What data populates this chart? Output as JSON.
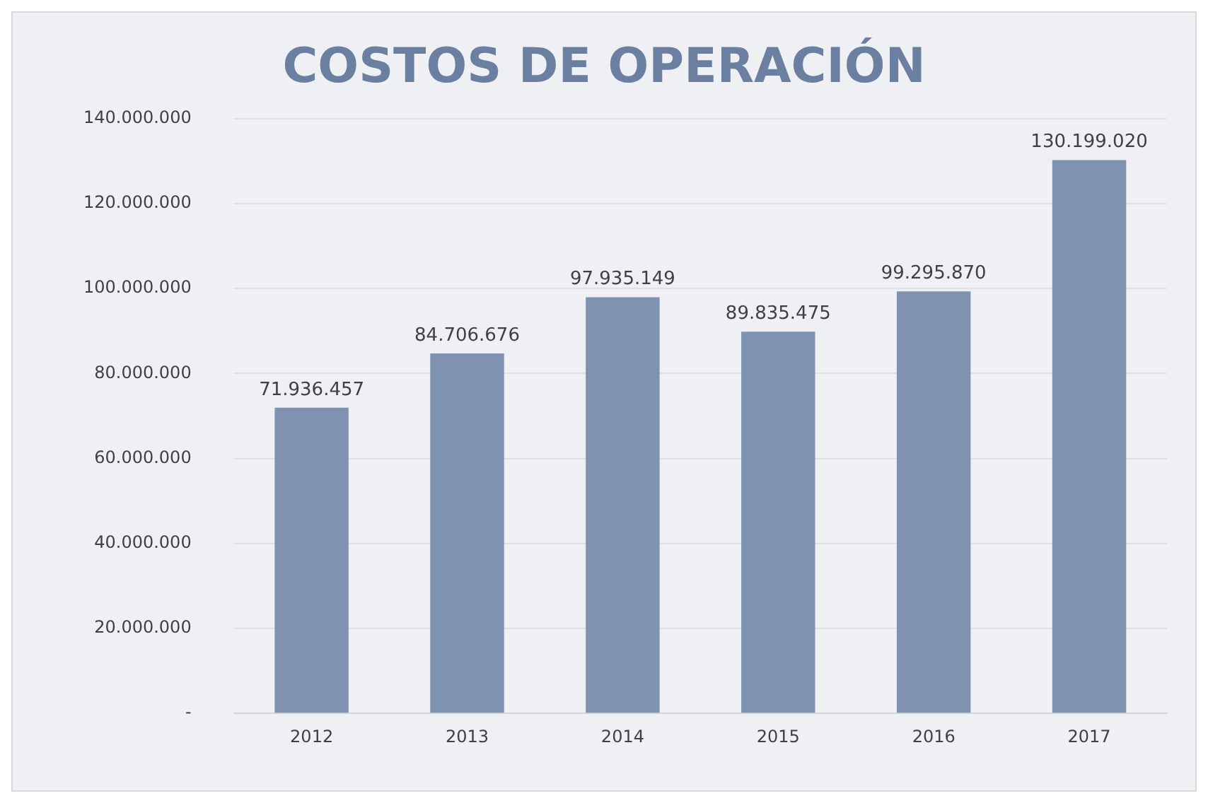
{
  "chart_data": {
    "type": "bar",
    "title": "COSTOS DE OPERACIÓN",
    "categories": [
      "2012",
      "2013",
      "2014",
      "2015",
      "2016",
      "2017"
    ],
    "values": [
      71936457,
      84706676,
      97935149,
      89835475,
      99295870,
      130199020
    ],
    "value_labels": [
      "71.936.457",
      "84.706.676",
      "97.935.149",
      "89.835.475",
      "99.295.870",
      "130.199.020"
    ],
    "color": "#7f93b0",
    "ylim": [
      0,
      140000000
    ],
    "yticks": [
      {
        "value": 0,
        "label": "-"
      },
      {
        "value": 20000000,
        "label": "20.000.000"
      },
      {
        "value": 40000000,
        "label": "40.000.000"
      },
      {
        "value": 60000000,
        "label": "60.000.000"
      },
      {
        "value": 80000000,
        "label": "80.000.000"
      },
      {
        "value": 100000000,
        "label": "100.000.000"
      },
      {
        "value": 120000000,
        "label": "120.000.000"
      },
      {
        "value": 140000000,
        "label": "140.000.000"
      }
    ],
    "grid": "y",
    "legend": false
  }
}
